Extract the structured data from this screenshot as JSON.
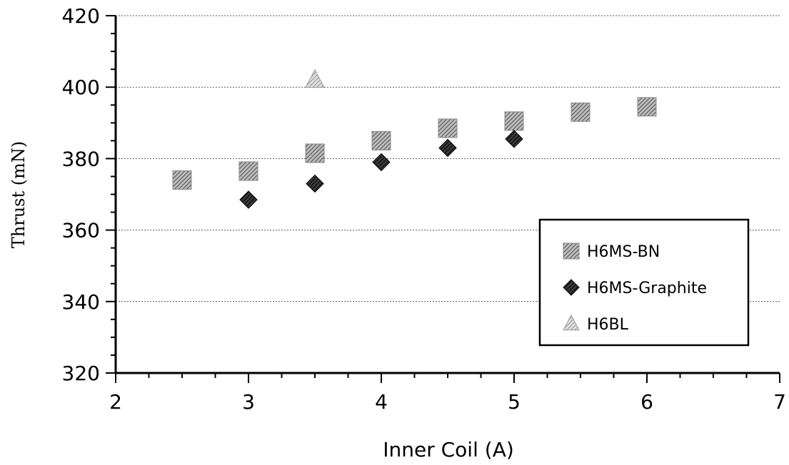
{
  "chart_data": {
    "type": "scatter",
    "title": "",
    "xlabel": "Inner Coil (A)",
    "ylabel": "Thrust (mN)",
    "xlim": [
      2,
      7
    ],
    "ylim": [
      320,
      420
    ],
    "xticks": [
      "2",
      "3",
      "4",
      "5",
      "6",
      "7"
    ],
    "yticks": [
      "320",
      "340",
      "360",
      "380",
      "400",
      "420"
    ],
    "grid": "horizontal",
    "legend_position": "bottom-right",
    "series": [
      {
        "name": "H6MS-BN",
        "marker": "square",
        "color": "#7a7a7a",
        "x": [
          2.5,
          3.0,
          3.5,
          4.0,
          4.5,
          5.0,
          5.5,
          6.0
        ],
        "y": [
          374,
          376.5,
          381.5,
          385,
          388.5,
          390.5,
          393,
          394.5
        ]
      },
      {
        "name": "H6MS-Graphite",
        "marker": "diamond",
        "color": "#1a1a1a",
        "x": [
          3.0,
          3.5,
          4.0,
          4.5,
          5.0
        ],
        "y": [
          368.5,
          373,
          379,
          383,
          385.5
        ]
      },
      {
        "name": "H6BL",
        "marker": "triangle",
        "color": "#9a9a9a",
        "x": [
          3.5
        ],
        "y": [
          402
        ]
      }
    ]
  }
}
